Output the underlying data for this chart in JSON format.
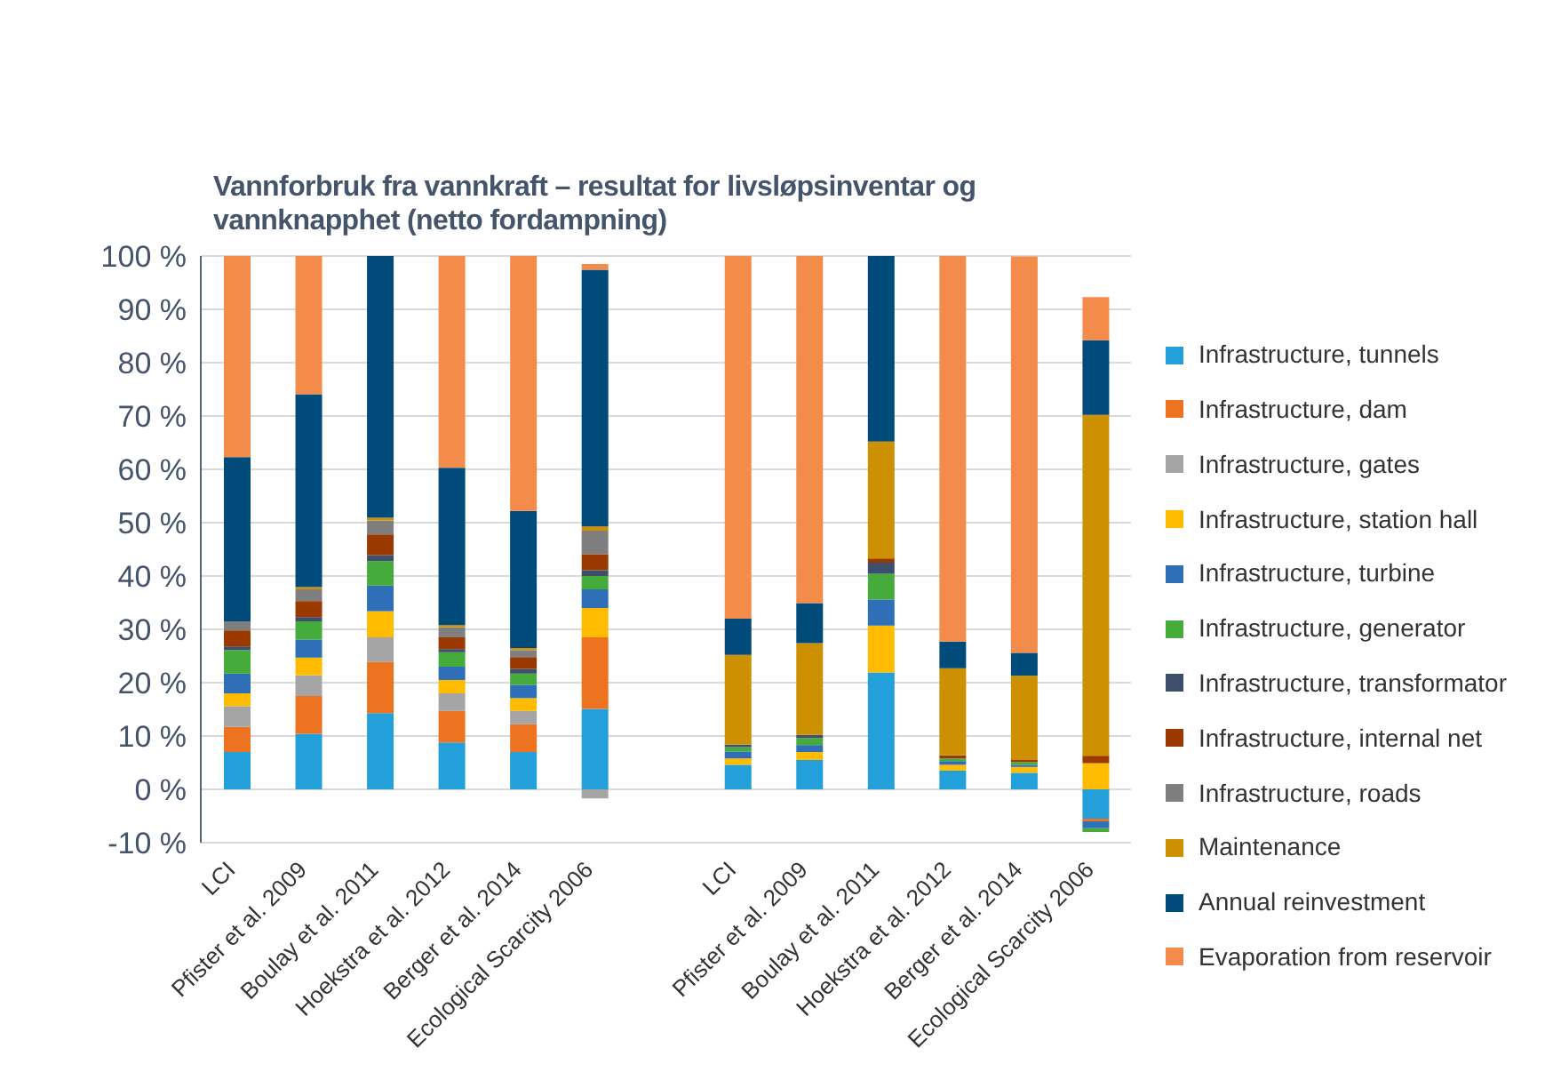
{
  "chart_data": {
    "type": "bar",
    "title": "Vannforbruk fra vannkraft – resultat for livsløpsinventar og vannknapphet (netto fordampning)",
    "stacked": true,
    "grid": "y",
    "legend": "right",
    "categories": [
      "LCI",
      "Pfister et al. 2009",
      "Boulay et al. 2011",
      "Hoekstra et al. 2012",
      "Berger et al. 2014",
      "Ecological Scarcity 2006",
      null,
      "LCI",
      "Pfister et al. 2009",
      "Boulay et al. 2011",
      "Hoekstra et al. 2012",
      "Berger et al. 2014",
      "Ecological Scarcity 2006"
    ],
    "ylim": [
      -10,
      100
    ],
    "yticks": [
      {
        "value": -10,
        "label": "-10 %"
      },
      {
        "value": 0,
        "label": "0 %"
      },
      {
        "value": 10,
        "label": "10 %"
      },
      {
        "value": 20,
        "label": "20 %"
      },
      {
        "value": 30,
        "label": "30 %"
      },
      {
        "value": 40,
        "label": "40 %"
      },
      {
        "value": 50,
        "label": "50 %"
      },
      {
        "value": 60,
        "label": "60 %"
      },
      {
        "value": 70,
        "label": "70 %"
      },
      {
        "value": 80,
        "label": "80 %"
      },
      {
        "value": 90,
        "label": "90 %"
      },
      {
        "value": 100,
        "label": "100 %"
      }
    ],
    "series": [
      {
        "name": "Infrastructure, tunnels",
        "color": "#239fda",
        "values": [
          7,
          10.4,
          14.3,
          8.8,
          7,
          15.1,
          null,
          4.6,
          5.5,
          21.9,
          3.5,
          3.1,
          -5.5
        ]
      },
      {
        "name": "Infrastructure, dam",
        "color": "#ed7320",
        "values": [
          4.7,
          7.1,
          9.6,
          5.9,
          5.2,
          13.4,
          null,
          0,
          0,
          0,
          0,
          0,
          -0.5
        ]
      },
      {
        "name": "Infrastructure, gates",
        "color": "#a5a5a5",
        "values": [
          3.9,
          3.9,
          4.6,
          3.3,
          2.5,
          -1.7,
          null,
          0,
          0,
          0,
          0,
          0,
          0
        ]
      },
      {
        "name": "Infrastructure, station hall",
        "color": "#ffbb00",
        "values": [
          2.4,
          3.3,
          4.9,
          2.5,
          2.4,
          5.5,
          null,
          1.2,
          1.5,
          8.8,
          1.1,
          1.1,
          4.9
        ]
      },
      {
        "name": "Infrastructure, turbine",
        "color": "#2e6fb7",
        "values": [
          3.7,
          3.4,
          4.8,
          2.5,
          2.5,
          3.5,
          null,
          1.3,
          1.3,
          4.9,
          0.7,
          0.4,
          -1.3
        ]
      },
      {
        "name": "Infrastructure, generator",
        "color": "#45ac3c",
        "values": [
          4.4,
          3.4,
          4.6,
          2.7,
          2.1,
          2.5,
          null,
          0.8,
          1.3,
          4.8,
          0.5,
          0.5,
          -0.7
        ]
      },
      {
        "name": "Infrastructure, transformator",
        "color": "#3d4f6b",
        "values": [
          0.7,
          0.8,
          1.1,
          0.6,
          0.9,
          1.1,
          null,
          0.5,
          0.6,
          2.1,
          0,
          0,
          0
        ]
      },
      {
        "name": "Infrastructure, internal net",
        "color": "#9b3a00",
        "values": [
          3,
          3,
          3.9,
          2.2,
          2.2,
          3,
          null,
          0,
          0,
          0.8,
          0.6,
          0.4,
          1.4
        ]
      },
      {
        "name": "Infrastructure, roads",
        "color": "#7f7f7f",
        "values": [
          1.7,
          2.2,
          2.6,
          1.9,
          1.3,
          4.4,
          null,
          0,
          0,
          0,
          0,
          0,
          0
        ]
      },
      {
        "name": "Maintenance",
        "color": "#cc9000",
        "values": [
          0,
          0.4,
          0.5,
          0.4,
          0.4,
          0.8,
          null,
          16.8,
          17.2,
          21.9,
          16.3,
          15.8,
          63.9
        ]
      },
      {
        "name": "Annual reinvestment",
        "color": "#004b7a",
        "values": [
          30.8,
          36.2,
          49.1,
          29.5,
          25.7,
          48.1,
          null,
          6.8,
          7.5,
          34.8,
          5,
          4.3,
          14
        ]
      },
      {
        "name": "Evaporation from reservoir",
        "color": "#f38b4b",
        "values": [
          37.7,
          25.9,
          0,
          39.7,
          47.8,
          1.1,
          null,
          68,
          65.1,
          0,
          72.3,
          74.3,
          8.1
        ]
      }
    ]
  }
}
